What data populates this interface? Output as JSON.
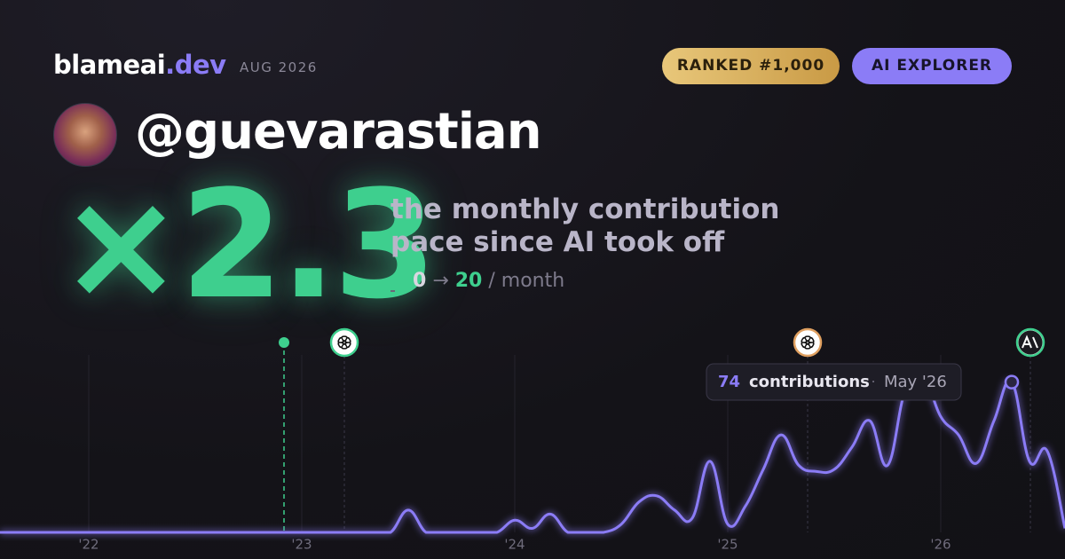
{
  "header": {
    "brand": "blameai",
    "brand_suffix": ".dev",
    "date": "AUG 2026",
    "rank_badge": "RANKED #1,000",
    "tier_badge": "AI EXPLORER"
  },
  "profile": {
    "handle": "@guevarastian"
  },
  "headline": {
    "multiplier": "×2.3",
    "line1": "the monthly contribution",
    "line2": "pace since AI took off",
    "from": "0",
    "arrow": "→",
    "to": "20",
    "unit": "/ month"
  },
  "chart_data": {
    "type": "line",
    "categories": [
      null,
      null,
      null,
      null,
      null,
      "'22",
      null,
      null,
      null,
      null,
      null,
      null,
      null,
      null,
      null,
      null,
      null,
      "'23",
      null,
      null,
      null,
      null,
      null,
      null,
      null,
      null,
      null,
      null,
      null,
      "'24",
      null,
      null,
      null,
      null,
      null,
      null,
      null,
      null,
      null,
      null,
      null,
      "'25",
      null,
      null,
      null,
      null,
      null,
      null,
      null,
      null,
      null,
      null,
      null,
      "'26",
      null,
      null,
      null,
      null,
      null,
      null,
      null
    ],
    "values": [
      0,
      0,
      0,
      0,
      0,
      0,
      0,
      0,
      0,
      0,
      0,
      0,
      0,
      0,
      0,
      0,
      0,
      0,
      0,
      0,
      0,
      0,
      0,
      11,
      0,
      0,
      0,
      0,
      0,
      6,
      2,
      9,
      0,
      0,
      0,
      4,
      15,
      18,
      11,
      7,
      35,
      4,
      13,
      31,
      48,
      33,
      30,
      31,
      42,
      55,
      33,
      70,
      77,
      57,
      48,
      34,
      55,
      74,
      35,
      40,
      2
    ],
    "color": "#8b7cf6",
    "ylim": [
      0,
      90
    ],
    "tooltip": {
      "index": 57,
      "label": "contributions",
      "separator": "·",
      "date": "May '26"
    }
  }
}
